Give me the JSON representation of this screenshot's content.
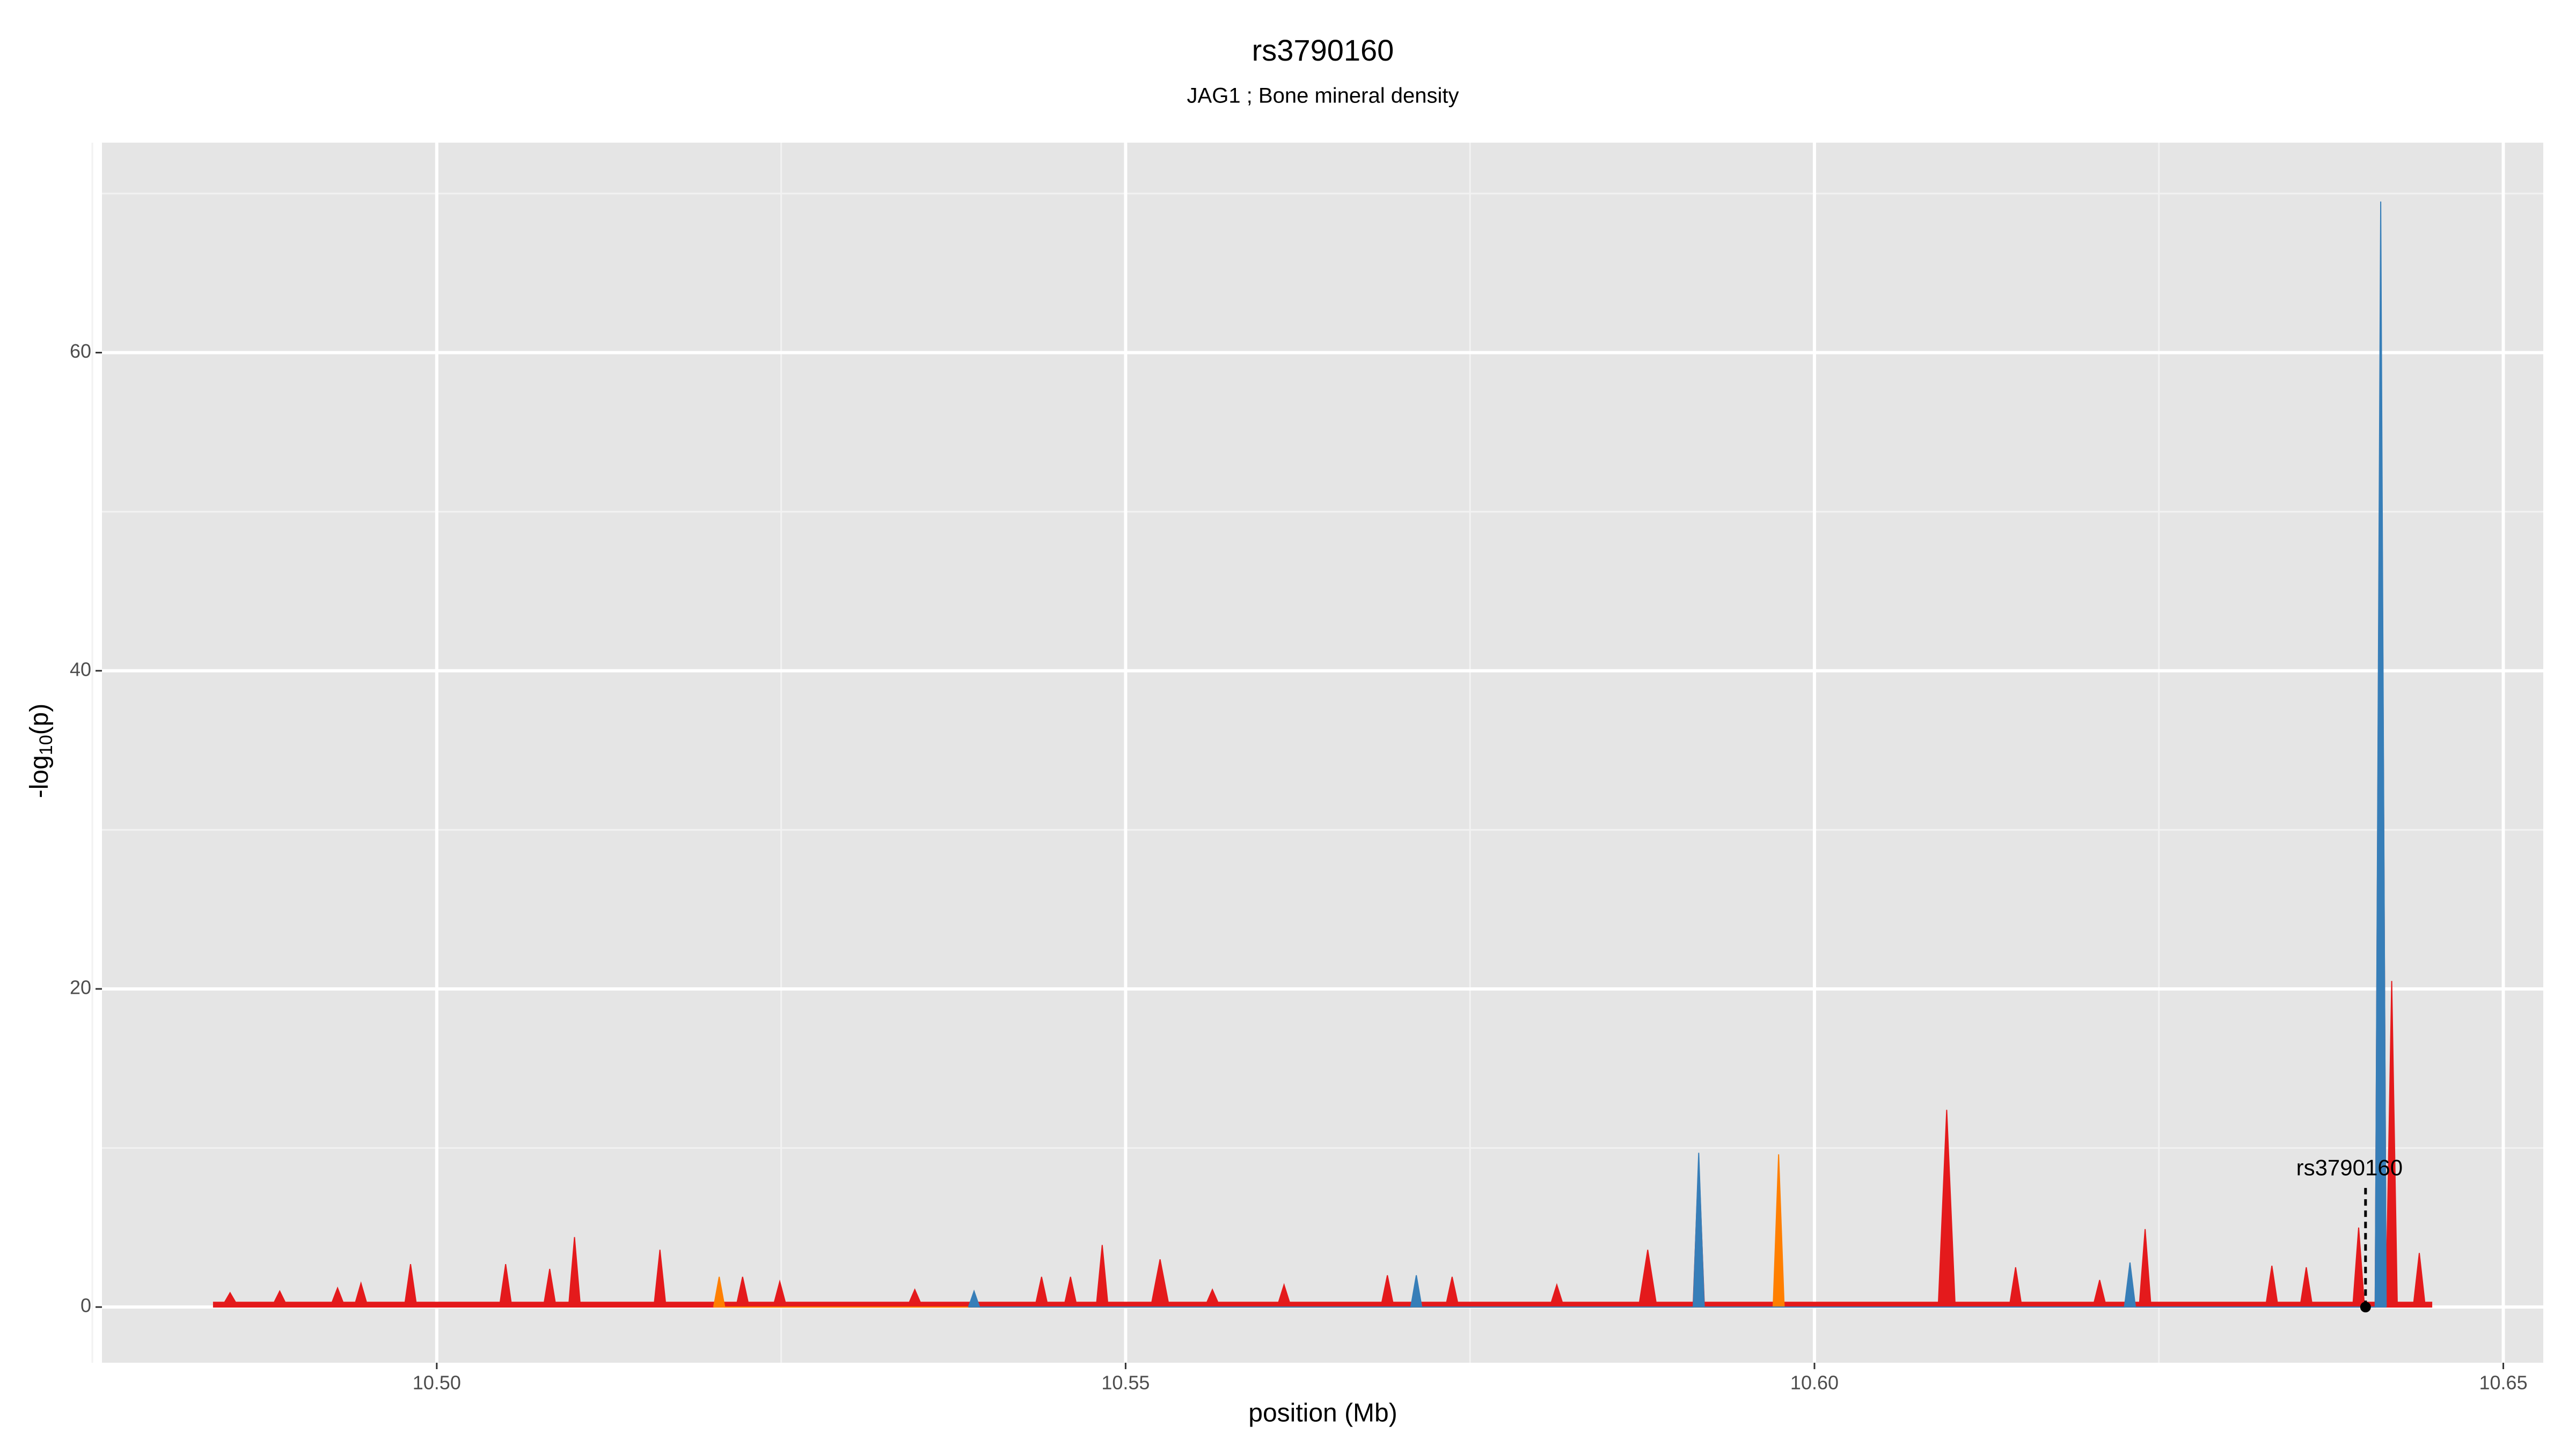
{
  "chart_data": {
    "type": "area",
    "title": "rs3790160",
    "subtitle": "JAG1 ; Bone mineral density",
    "xlabel": "position (Mb)",
    "ylabel": [
      "-log",
      "10",
      "(p)"
    ],
    "xlim": [
      10.4757,
      10.6529
    ],
    "ylim": [
      -3.5,
      73.2
    ],
    "xticks": [
      {
        "value": 10.5,
        "label": "10.50"
      },
      {
        "value": 10.55,
        "label": "10.55"
      },
      {
        "value": 10.6,
        "label": "10.60"
      },
      {
        "value": 10.65,
        "label": "10.65"
      }
    ],
    "yticks": [
      0,
      20,
      40,
      60
    ],
    "x_minor_ticks": [
      10.475,
      10.525,
      10.575,
      10.625
    ],
    "y_minor_ticks": [
      10,
      30,
      50,
      70
    ],
    "grid": true,
    "background": "#e5e5e5",
    "series": [
      {
        "color": "#e41a1c",
        "x": [
          10.4838,
          10.4846,
          10.485,
          10.4854,
          10.4882,
          10.4886,
          10.489,
          10.4924,
          10.4928,
          10.4932,
          10.4941,
          10.4945,
          10.4949,
          10.4977,
          10.4981,
          10.4985,
          10.5046,
          10.505,
          10.5054,
          10.5078,
          10.5082,
          10.5086,
          10.5096,
          10.51,
          10.5104,
          10.5158,
          10.5162,
          10.5166,
          10.5218,
          10.5222,
          10.5226,
          10.5245,
          10.5249,
          10.5253,
          10.5343,
          10.5347,
          10.5351,
          10.5435,
          10.5439,
          10.5443,
          10.5456,
          10.546,
          10.5464,
          10.5479,
          10.5483,
          10.5487,
          10.5519,
          10.5525,
          10.5531,
          10.5559,
          10.5563,
          10.5567,
          10.5611,
          10.5615,
          10.5619,
          10.5686,
          10.569,
          10.5694,
          10.5733,
          10.5737,
          10.5741,
          10.5809,
          10.5813,
          10.5817,
          10.5873,
          10.5879,
          10.5885,
          10.5912,
          10.5916,
          10.592,
          10.609,
          10.6096,
          10.6102,
          10.6142,
          10.6146,
          10.615,
          10.6203,
          10.6207,
          10.6211,
          10.6236,
          10.624,
          10.6244,
          10.6328,
          10.6332,
          10.6336,
          10.6353,
          10.6357,
          10.6361,
          10.6391,
          10.6395,
          10.6399,
          10.6407,
          10.6411,
          10.6415,
          10.6419,
          10.6423,
          10.6435,
          10.6439,
          10.6443,
          10.6448
        ],
        "values": [
          0.3,
          0.3,
          0.9,
          0.3,
          0.3,
          1.0,
          0.3,
          0.3,
          1.2,
          0.3,
          0.3,
          1.5,
          0.3,
          0.3,
          2.7,
          0.3,
          0.3,
          2.7,
          0.3,
          0.3,
          2.4,
          0.3,
          0.3,
          4.4,
          0.3,
          0.3,
          3.6,
          0.3,
          0.3,
          1.9,
          0.3,
          0.3,
          1.6,
          0.3,
          0.3,
          1.1,
          0.3,
          0.3,
          1.9,
          0.3,
          0.3,
          1.9,
          0.3,
          0.3,
          3.9,
          0.3,
          0.3,
          3.0,
          0.3,
          0.3,
          1.1,
          0.3,
          0.3,
          1.4,
          0.3,
          0.3,
          2.0,
          0.3,
          0.3,
          1.9,
          0.3,
          0.3,
          1.4,
          0.3,
          0.3,
          3.6,
          0.3,
          0.3,
          9.3,
          0.3,
          0.3,
          12.4,
          0.3,
          0.3,
          2.5,
          0.3,
          0.3,
          1.7,
          0.3,
          0.3,
          4.9,
          0.3,
          0.3,
          2.6,
          0.3,
          0.3,
          2.5,
          0.3,
          0.3,
          5.0,
          0.3,
          0.3,
          66,
          1,
          20.5,
          0.3,
          0.3,
          3.4,
          0.3,
          0.3
        ]
      },
      {
        "color": "#ff7f00",
        "x": [
          10.5201,
          10.5205,
          10.5209,
          10.597,
          10.5974,
          10.5978
        ],
        "values": [
          0,
          1.9,
          0,
          0,
          9.6,
          0
        ]
      },
      {
        "color": "#377eb8",
        "x": [
          10.5386,
          10.539,
          10.5394,
          10.5707,
          10.5711,
          10.5715,
          10.5912,
          10.5916,
          10.592,
          10.6225,
          10.6229,
          10.6233,
          10.6407,
          10.6411,
          10.6415
        ],
        "values": [
          0,
          1.0,
          0,
          0,
          2.0,
          0,
          0,
          9.7,
          0,
          0,
          2.8,
          0,
          0,
          69.5,
          0
        ]
      }
    ],
    "annotation": {
      "text": "rs3790160",
      "x": 10.64,
      "y": 0
    }
  }
}
